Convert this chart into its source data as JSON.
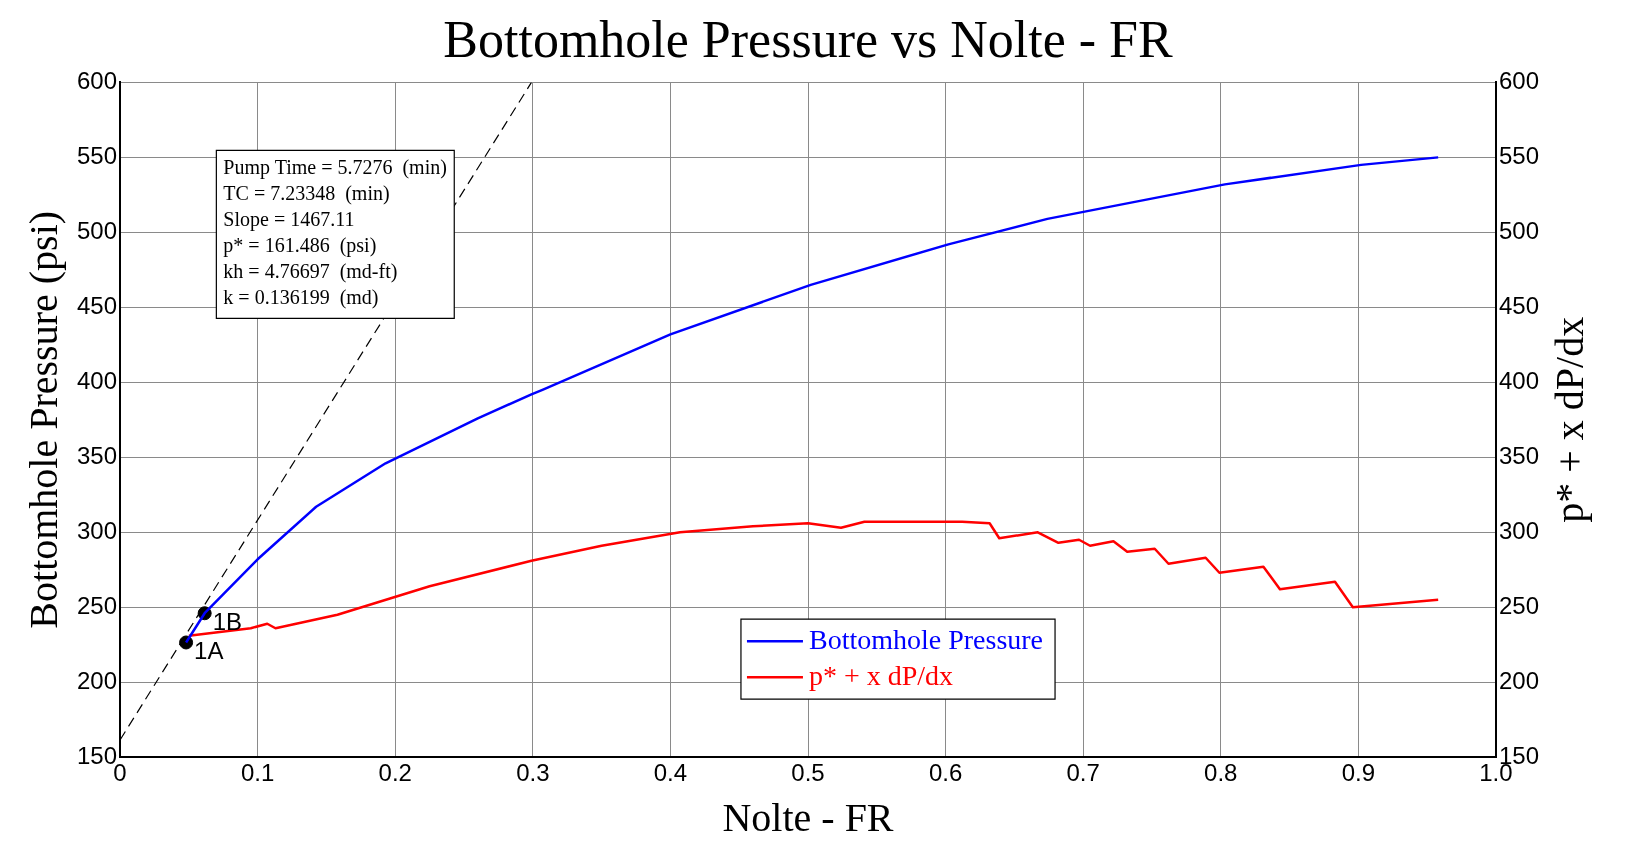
{
  "chart_data": {
    "type": "line",
    "title": "Bottomhole Pressure vs Nolte - FR",
    "xlabel": "Nolte - FR",
    "ylabel": "Bottomhole Pressure (psi)",
    "y2label": "p* + x dP/dx",
    "xlim": [
      0,
      1.0
    ],
    "xticks": [
      0,
      0.1,
      0.2,
      0.3,
      0.4,
      0.5,
      0.6,
      0.7,
      0.8,
      0.9,
      {
        "value": 1.0,
        "label": "1.0"
      }
    ],
    "ylim": [
      150,
      600
    ],
    "yticks": [
      150,
      200,
      250,
      300,
      350,
      400,
      450,
      500,
      550,
      600
    ],
    "y2lim": [
      150,
      600
    ],
    "y2ticks": [
      150,
      200,
      250,
      300,
      350,
      400,
      450,
      500,
      550,
      600
    ],
    "grid": true,
    "legend": "bottom",
    "marker": "none",
    "series": [
      {
        "name": "Bottomhole Pressure",
        "color": "#0000ff",
        "x": [
          0.048,
          0.0615,
          0.1,
          0.1425,
          0.193,
          0.26,
          0.299,
          0.307,
          0.4,
          0.502,
          0.602,
          0.674,
          0.803,
          0.902,
          0.958
        ],
        "values": [
          226.5,
          246,
          282,
          317,
          346,
          376,
          392,
          395,
          432,
          465,
          492,
          509,
          532,
          545,
          550
        ]
      },
      {
        "name": "p* + x dP/dx",
        "color": "#ff0000",
        "x": [
          0.05,
          0.095,
          0.107,
          0.113,
          0.158,
          0.225,
          0.299,
          0.35,
          0.407,
          0.46,
          0.5,
          0.524,
          0.541,
          0.612,
          0.632,
          0.639,
          0.667,
          0.682,
          0.697,
          0.705,
          0.722,
          0.732,
          0.752,
          0.762,
          0.789,
          0.799,
          0.831,
          0.843,
          0.883,
          0.896,
          0.958
        ],
        "values": [
          231,
          236,
          239,
          236,
          245,
          264,
          281,
          291,
          300,
          304,
          306,
          303,
          307,
          307,
          306,
          296,
          300,
          293,
          295,
          291,
          294,
          287,
          289,
          279,
          283,
          273,
          277,
          262,
          267,
          250,
          255
        ]
      },
      {
        "type": "line",
        "color": "#000000",
        "line_style": "dashed",
        "x": [
          0,
          0.299
        ],
        "values": [
          161.5,
          600
        ]
      },
      {
        "type": "scatter",
        "color": "#000000",
        "marker": "circle",
        "x": [
          0.048,
          0.0615
        ],
        "values": [
          226.5,
          246
        ]
      }
    ],
    "annotations": [
      "Pump Time = 5.7276  (min)",
      "TC = 7.23348  (min)",
      "Slope = 1467.11",
      "p* = 161.486  (psi)",
      "kh = 4.76697  (md-ft)",
      "k = 0.136199  (md)",
      {
        "text": "1A",
        "x": 0.048,
        "y": 226.5
      },
      {
        "text": "1B",
        "x": 0.0615,
        "y": 246
      }
    ]
  }
}
